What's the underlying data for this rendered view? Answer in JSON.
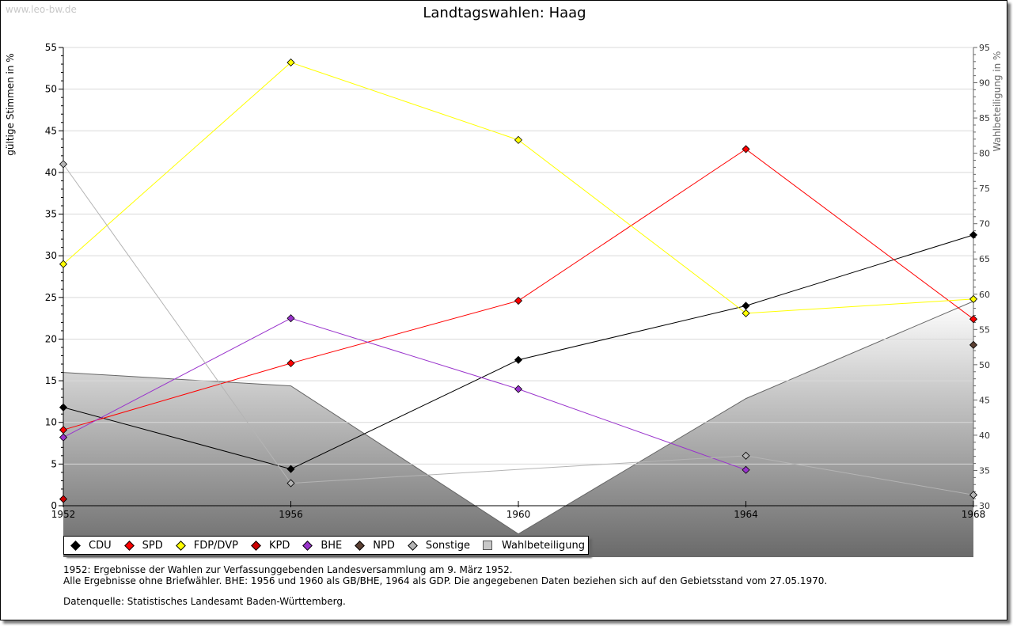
{
  "watermark": "www.leo-bw.de",
  "chart_data": {
    "type": "line",
    "title": "Landtagswahlen: Haag",
    "ylabel": "gültige Stimmen in %",
    "y2label": "Wahlbeteiligung in %",
    "categories": [
      "1952",
      "1956",
      "1960",
      "1964",
      "1968"
    ],
    "ylim": [
      0,
      55
    ],
    "yticks": [
      0,
      5,
      10,
      15,
      20,
      25,
      30,
      35,
      40,
      45,
      50,
      55
    ],
    "y2lim": [
      30,
      95
    ],
    "y2ticks": [
      30,
      35,
      40,
      45,
      50,
      55,
      60,
      65,
      70,
      75,
      80,
      85,
      90,
      95
    ],
    "series": [
      {
        "name": "CDU",
        "color": "#000000",
        "values": [
          11.8,
          4.4,
          17.5,
          24.0,
          32.5
        ]
      },
      {
        "name": "SPD",
        "color": "#ff0000",
        "values": [
          9.1,
          17.1,
          24.6,
          42.8,
          22.4
        ]
      },
      {
        "name": "FDP/DVP",
        "color": "#ffff00",
        "values": [
          29.0,
          53.2,
          43.9,
          23.1,
          24.8
        ]
      },
      {
        "name": "KPD",
        "color": "#cc0000",
        "values": [
          0.8,
          null,
          null,
          null,
          null
        ]
      },
      {
        "name": "BHE",
        "color": "#9933cc",
        "values": [
          8.2,
          22.5,
          14.0,
          4.3,
          null
        ]
      },
      {
        "name": "NPD",
        "color": "#5c4033",
        "values": [
          null,
          null,
          null,
          null,
          19.3
        ]
      },
      {
        "name": "Sonstige",
        "color": "#b4b4b4",
        "values": [
          41.0,
          2.7,
          null,
          6.0,
          1.3
        ]
      }
    ],
    "turnout": {
      "name": "Wahlbeteiligung",
      "values": [
        48.9,
        47.0,
        26.0,
        45.2,
        59.0
      ]
    }
  },
  "legend": {
    "items": [
      {
        "label": "CDU",
        "color": "#000000"
      },
      {
        "label": "SPD",
        "color": "#ff0000"
      },
      {
        "label": "FDP/DVP",
        "color": "#ffff00"
      },
      {
        "label": "KPD",
        "color": "#cc0000"
      },
      {
        "label": "BHE",
        "color": "#9933cc"
      },
      {
        "label": "NPD",
        "color": "#5c4033"
      },
      {
        "label": "Sonstige",
        "color": "#b4b4b4"
      }
    ],
    "turnout_label": "Wahlbeteiligung"
  },
  "notes": {
    "line1": "1952: Ergebnisse der Wahlen zur Verfassunggebenden Landesversammlung am 9. März 1952.",
    "line2": "Alle Ergebnisse ohne Briefwähler. BHE: 1956 und 1960 als GB/BHE, 1964 als GDP. Die angegebenen Daten beziehen sich auf den Gebietsstand vom 27.05.1970.",
    "source": "Datenquelle: Statistisches Landesamt Baden-Württemberg."
  }
}
